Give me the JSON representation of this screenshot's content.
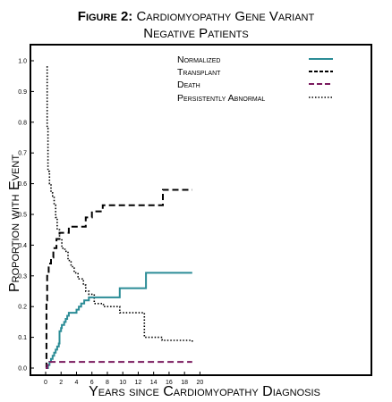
{
  "figure": {
    "title_prefix": "Figure 2:",
    "title_line1": "Cardiomyopathy Gene Variant",
    "title_line2": "Negative Patients"
  },
  "chart_data": {
    "type": "line",
    "step": true,
    "xlabel": "Years since Cardiomyopathy Diagnosis",
    "ylabel": "Proportion with Event",
    "xlim": [
      0,
      20
    ],
    "ylim": [
      0,
      1.0
    ],
    "xticks": [
      0,
      2,
      4,
      6,
      8,
      10,
      12,
      14,
      16,
      18,
      20
    ],
    "yticks": [
      0.0,
      0.1,
      0.2,
      0.3,
      0.4,
      0.5,
      0.6,
      0.7,
      0.8,
      0.9,
      1.0
    ],
    "ytick_labels": [
      "0.0",
      "0.1",
      "0.2",
      "0.3",
      "0.4",
      "0.5",
      "0.6",
      "0.7",
      "0.8",
      "0.9",
      "1.0"
    ],
    "grid": false,
    "legend_position": "top-right",
    "series": [
      {
        "name": "Normalized",
        "color": "#2b8c96",
        "dash": "solid",
        "x": [
          0,
          0.3,
          0.5,
          0.7,
          0.9,
          1.1,
          1.3,
          1.5,
          1.7,
          1.8,
          2.0,
          2.1,
          2.4,
          2.6,
          2.8,
          3.0,
          4.0,
          4.3,
          4.6,
          5.0,
          5.6,
          6.0,
          7.5,
          9.6,
          12.9,
          13.0,
          19.0
        ],
        "y": [
          0.0,
          0.01,
          0.02,
          0.03,
          0.04,
          0.05,
          0.06,
          0.07,
          0.08,
          0.12,
          0.13,
          0.14,
          0.15,
          0.16,
          0.17,
          0.18,
          0.19,
          0.2,
          0.21,
          0.22,
          0.23,
          0.23,
          0.23,
          0.26,
          0.26,
          0.31,
          0.31
        ]
      },
      {
        "name": "Transplant",
        "color": "#000000",
        "dash": "dashed",
        "x": [
          0,
          0.1,
          0.2,
          0.4,
          0.7,
          1.0,
          1.4,
          1.8,
          2.2,
          3.0,
          4.0,
          5.2,
          6.0,
          6.5,
          7.4,
          15.2,
          19.0
        ],
        "y": [
          0.0,
          0.22,
          0.3,
          0.34,
          0.36,
          0.39,
          0.42,
          0.44,
          0.44,
          0.46,
          0.46,
          0.49,
          0.51,
          0.51,
          0.53,
          0.58,
          0.58
        ]
      },
      {
        "name": "Death",
        "color": "#7a1a5e",
        "dash": "dashed",
        "x": [
          0,
          0.2,
          0.5,
          19.0
        ],
        "y": [
          0.0,
          0.01,
          0.02,
          0.02
        ]
      },
      {
        "name": "Persistently Abnormal",
        "color": "#000000",
        "dash": "dotted",
        "x": [
          0.1,
          0.2,
          0.3,
          0.5,
          0.7,
          0.9,
          1.1,
          1.3,
          1.5,
          1.8,
          2.1,
          2.5,
          2.9,
          3.3,
          3.7,
          4.2,
          4.9,
          5.2,
          5.6,
          6.3,
          7.5,
          9.6,
          12.8,
          15.1,
          19.0
        ],
        "y": [
          0.98,
          0.78,
          0.64,
          0.6,
          0.57,
          0.56,
          0.53,
          0.49,
          0.45,
          0.42,
          0.39,
          0.38,
          0.35,
          0.33,
          0.31,
          0.29,
          0.27,
          0.25,
          0.24,
          0.21,
          0.2,
          0.18,
          0.1,
          0.09,
          0.08
        ]
      }
    ]
  }
}
